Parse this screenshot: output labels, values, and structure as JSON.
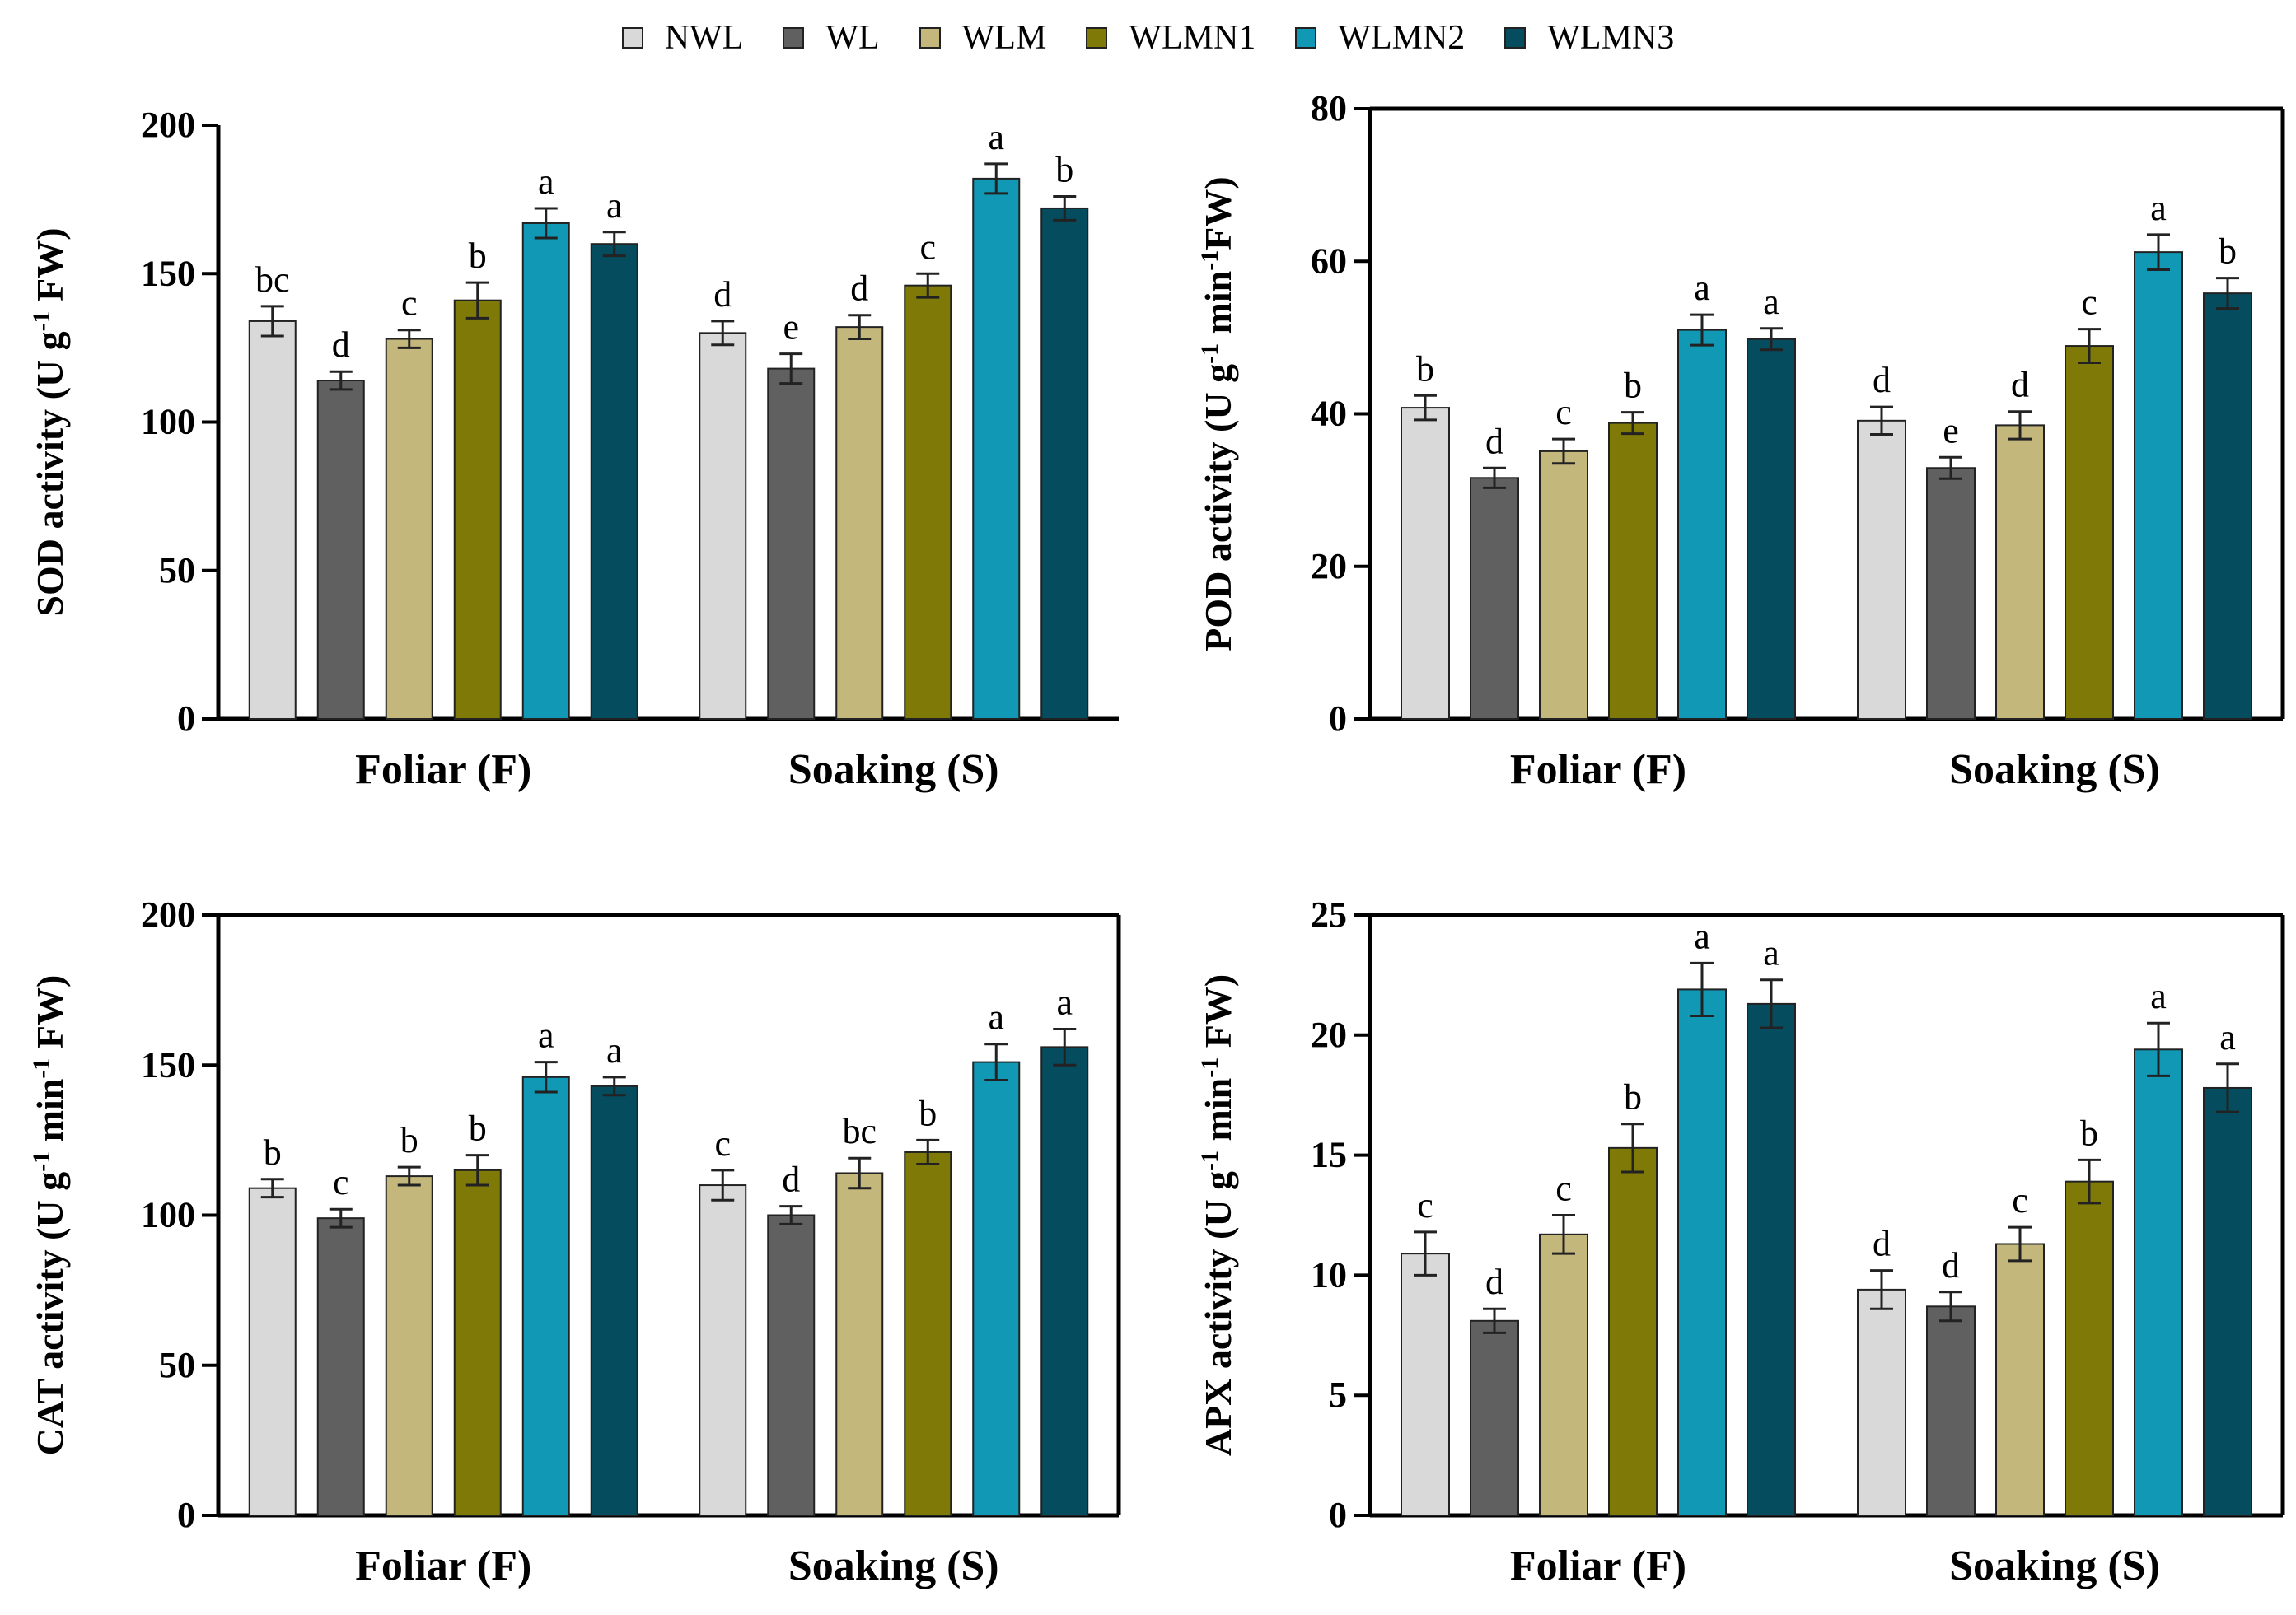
{
  "legend": {
    "items": [
      {
        "name": "NWL",
        "color": "#d9d9d9"
      },
      {
        "name": "WL",
        "color": "#606060"
      },
      {
        "name": "WLM",
        "color": "#c4b77c"
      },
      {
        "name": "WLMN1",
        "color": "#7f7a07"
      },
      {
        "name": "WLMN2",
        "color": "#1198b5"
      },
      {
        "name": "WLMN3",
        "color": "#054c5f"
      }
    ]
  },
  "chart_data": [
    {
      "type": "bar",
      "panel": "top-left",
      "ylabel_main": "SOD activity (U g",
      "ylabel_sup1": "-1",
      "ylabel_tail": " FW)",
      "categories": [
        "Foliar (F)",
        "Soaking (S)"
      ],
      "ylim": [
        0,
        200
      ],
      "yticks": [
        0,
        50,
        100,
        150,
        200
      ],
      "series": [
        {
          "name": "NWL",
          "values": [
            134,
            130
          ],
          "errors": [
            5,
            4
          ],
          "letters": [
            "bc",
            "d"
          ]
        },
        {
          "name": "WL",
          "values": [
            114,
            118
          ],
          "errors": [
            3,
            5
          ],
          "letters": [
            "d",
            "e"
          ]
        },
        {
          "name": "WLM",
          "values": [
            128,
            132
          ],
          "errors": [
            3,
            4
          ],
          "letters": [
            "c",
            "d"
          ]
        },
        {
          "name": "WLMN1",
          "values": [
            141,
            146
          ],
          "errors": [
            6,
            4
          ],
          "letters": [
            "b",
            "c"
          ]
        },
        {
          "name": "WLMN2",
          "values": [
            167,
            182
          ],
          "errors": [
            5,
            5
          ],
          "letters": [
            "a",
            "a"
          ]
        },
        {
          "name": "WLMN3",
          "values": [
            160,
            172
          ],
          "errors": [
            4,
            4
          ],
          "letters": [
            "a",
            "b"
          ]
        }
      ]
    },
    {
      "type": "bar",
      "panel": "top-right",
      "ylabel_main": "POD activity (U g",
      "ylabel_sup1": "-1",
      "ylabel_mid": " min",
      "ylabel_sup2": "-1",
      "ylabel_tail": "FW)",
      "categories": [
        "Foliar (F)",
        "Soaking (S)"
      ],
      "ylim": [
        0,
        80
      ],
      "yticks": [
        0,
        20,
        40,
        60,
        80
      ],
      "series": [
        {
          "name": "NWL",
          "values": [
            40.8,
            39.1
          ],
          "errors": [
            1.6,
            1.8
          ],
          "letters": [
            "b",
            "d"
          ]
        },
        {
          "name": "WL",
          "values": [
            31.6,
            32.9
          ],
          "errors": [
            1.3,
            1.4
          ],
          "letters": [
            "d",
            "e"
          ]
        },
        {
          "name": "WLM",
          "values": [
            35.1,
            38.5
          ],
          "errors": [
            1.6,
            1.8
          ],
          "letters": [
            "c",
            "d"
          ]
        },
        {
          "name": "WLMN1",
          "values": [
            38.8,
            48.9
          ],
          "errors": [
            1.4,
            2.2
          ],
          "letters": [
            "b",
            "c"
          ]
        },
        {
          "name": "WLMN2",
          "values": [
            51.0,
            61.2
          ],
          "errors": [
            2.0,
            2.3
          ],
          "letters": [
            "a",
            "a"
          ]
        },
        {
          "name": "WLMN3",
          "values": [
            49.8,
            55.8
          ],
          "errors": [
            1.4,
            2.0
          ],
          "letters": [
            "a",
            "b"
          ]
        }
      ]
    },
    {
      "type": "bar",
      "panel": "bottom-left",
      "ylabel_main": "CAT activity (U g",
      "ylabel_sup1": "-1",
      "ylabel_mid": " min",
      "ylabel_sup2": "-1",
      "ylabel_tail": " FW)",
      "categories": [
        "Foliar (F)",
        "Soaking (S)"
      ],
      "ylim": [
        0,
        200
      ],
      "yticks": [
        0,
        50,
        100,
        150,
        200
      ],
      "series": [
        {
          "name": "NWL",
          "values": [
            109,
            110
          ],
          "errors": [
            3,
            5
          ],
          "letters": [
            "b",
            "c"
          ]
        },
        {
          "name": "WL",
          "values": [
            99,
            100
          ],
          "errors": [
            3,
            3
          ],
          "letters": [
            "c",
            "d"
          ]
        },
        {
          "name": "WLM",
          "values": [
            113,
            114
          ],
          "errors": [
            3,
            5
          ],
          "letters": [
            "b",
            "bc"
          ]
        },
        {
          "name": "WLMN1",
          "values": [
            115,
            121
          ],
          "errors": [
            5,
            4
          ],
          "letters": [
            "b",
            "b"
          ]
        },
        {
          "name": "WLMN2",
          "values": [
            146,
            151
          ],
          "errors": [
            5,
            6
          ],
          "letters": [
            "a",
            "a"
          ]
        },
        {
          "name": "WLMN3",
          "values": [
            143,
            156
          ],
          "errors": [
            3,
            6
          ],
          "letters": [
            "a",
            "a"
          ]
        }
      ]
    },
    {
      "type": "bar",
      "panel": "bottom-right",
      "ylabel_main": "APX activity (U g",
      "ylabel_sup1": "-1",
      "ylabel_mid": " min",
      "ylabel_sup2": "-1",
      "ylabel_tail": " FW)",
      "categories": [
        "Foliar (F)",
        "Soaking (S)"
      ],
      "ylim": [
        0,
        25
      ],
      "yticks": [
        0,
        5,
        10,
        15,
        20,
        25
      ],
      "series": [
        {
          "name": "NWL",
          "values": [
            10.9,
            9.4
          ],
          "errors": [
            0.9,
            0.8
          ],
          "letters": [
            "c",
            "d"
          ]
        },
        {
          "name": "WL",
          "values": [
            8.1,
            8.7
          ],
          "errors": [
            0.5,
            0.6
          ],
          "letters": [
            "d",
            "d"
          ]
        },
        {
          "name": "WLM",
          "values": [
            11.7,
            11.3
          ],
          "errors": [
            0.8,
            0.7
          ],
          "letters": [
            "c",
            "c"
          ]
        },
        {
          "name": "WLMN1",
          "values": [
            15.3,
            13.9
          ],
          "errors": [
            1.0,
            0.9
          ],
          "letters": [
            "b",
            "b"
          ]
        },
        {
          "name": "WLMN2",
          "values": [
            21.9,
            19.4
          ],
          "errors": [
            1.1,
            1.1
          ],
          "letters": [
            "a",
            "a"
          ]
        },
        {
          "name": "WLMN3",
          "values": [
            21.3,
            17.8
          ],
          "errors": [
            1.0,
            1.0
          ],
          "letters": [
            "a",
            "a"
          ]
        }
      ]
    }
  ]
}
